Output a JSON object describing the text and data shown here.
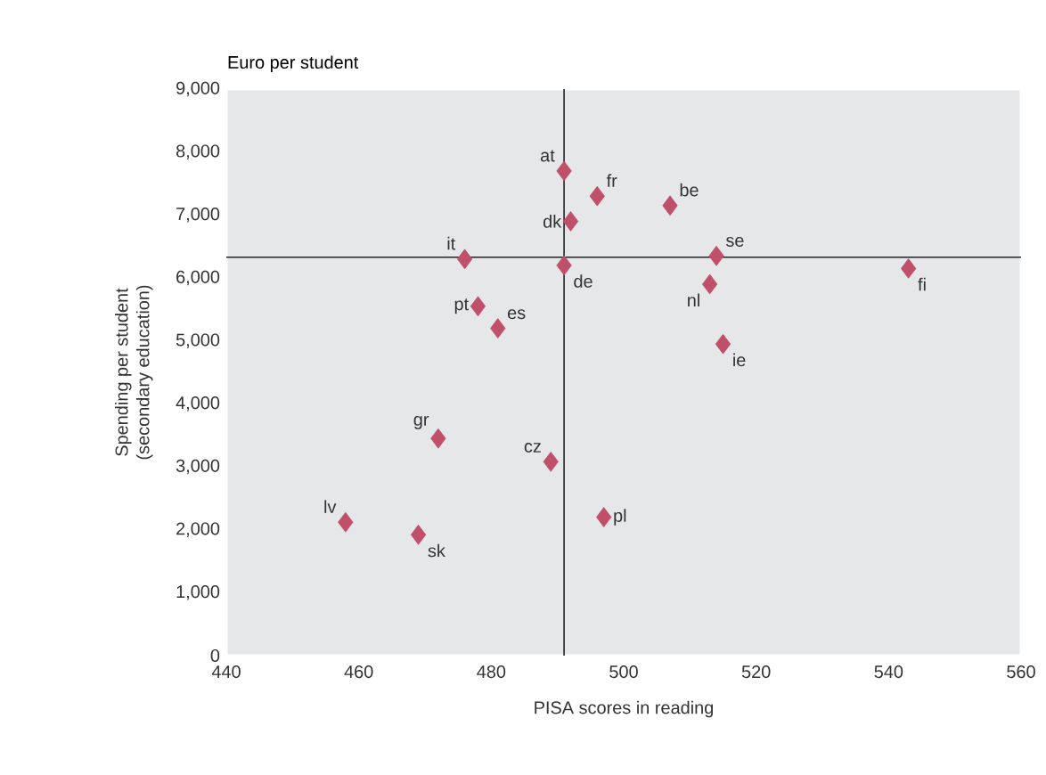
{
  "chart_data": {
    "type": "scatter",
    "subtitle": "Euro per student",
    "xlabel": "PISA scores in reading",
    "ylabel": "Spending per student\n(secondary education)",
    "x": [
      491,
      496,
      507,
      492,
      476,
      514,
      543,
      491,
      513,
      478,
      481,
      515,
      472,
      489,
      497,
      458,
      469
    ],
    "values": [
      7700,
      7300,
      7150,
      6900,
      6300,
      6350,
      6150,
      6200,
      5900,
      5550,
      5200,
      4950,
      3450,
      3080,
      2200,
      2120,
      1920
    ],
    "color": "#c0506a",
    "marker": "diamond",
    "grid": false,
    "xlim": [
      440,
      560
    ],
    "xticks": [
      440,
      460,
      480,
      500,
      520,
      540,
      560
    ],
    "ylim": [
      0,
      9000
    ],
    "yticks": [
      {
        "value": 0,
        "label": "0"
      },
      {
        "value": 1000,
        "label": "1,000"
      },
      {
        "value": 2000,
        "label": "2,000"
      },
      {
        "value": 3000,
        "label": "3,000"
      },
      {
        "value": 4000,
        "label": "4,000"
      },
      {
        "value": 5000,
        "label": "5,000"
      },
      {
        "value": 6000,
        "label": "6,000"
      },
      {
        "value": 7000,
        "label": "7,000"
      },
      {
        "value": 8000,
        "label": "8,000"
      },
      {
        "value": 9000,
        "label": "9,000"
      }
    ],
    "ref_lines": [
      {
        "axis": "x",
        "value": 491,
        "color": "#222222"
      },
      {
        "axis": "y",
        "value": 6330,
        "color": "#222222"
      }
    ],
    "annotations": [
      {
        "text": "at",
        "x": 491,
        "y": 7700
      },
      {
        "text": "fr",
        "x": 496,
        "y": 7300
      },
      {
        "text": "be",
        "x": 507,
        "y": 7150
      },
      {
        "text": "dk",
        "x": 492,
        "y": 6900
      },
      {
        "text": "it",
        "x": 476,
        "y": 6300
      },
      {
        "text": "se",
        "x": 514,
        "y": 6350
      },
      {
        "text": "fi",
        "x": 543,
        "y": 6150
      },
      {
        "text": "de",
        "x": 491,
        "y": 6200
      },
      {
        "text": "nl",
        "x": 513,
        "y": 5900
      },
      {
        "text": "pt",
        "x": 478,
        "y": 5550
      },
      {
        "text": "es",
        "x": 481,
        "y": 5200
      },
      {
        "text": "ie",
        "x": 515,
        "y": 4950
      },
      {
        "text": "gr",
        "x": 472,
        "y": 3450
      },
      {
        "text": "cz",
        "x": 489,
        "y": 3080
      },
      {
        "text": "pl",
        "x": 497,
        "y": 2200
      },
      {
        "text": "lv",
        "x": 458,
        "y": 2120
      },
      {
        "text": "sk",
        "x": 469,
        "y": 1920
      }
    ]
  }
}
